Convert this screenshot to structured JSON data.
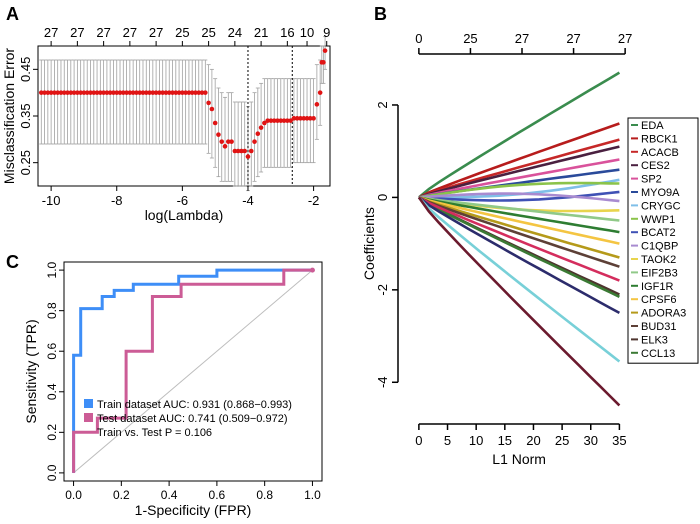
{
  "panel_labels": [
    "A",
    "B",
    "C"
  ],
  "chart_data": [
    {
      "panel": "A",
      "type": "scatter",
      "xlabel": "log(Lambda)",
      "ylabel": "Misclassification Error",
      "x_ticks": [
        -10,
        -8,
        -6,
        -4,
        -2
      ],
      "y_ticks": [
        0.25,
        0.35,
        0.45
      ],
      "xlim": [
        -10.4,
        -1.5
      ],
      "ylim": [
        0.2,
        0.5
      ],
      "top_axis_labels": [
        {
          "x": -10.0,
          "text": "27"
        },
        {
          "x": -9.2,
          "text": "27"
        },
        {
          "x": -8.4,
          "text": "27"
        },
        {
          "x": -7.6,
          "text": "27"
        },
        {
          "x": -6.8,
          "text": "27"
        },
        {
          "x": -6.0,
          "text": "25"
        },
        {
          "x": -5.2,
          "text": "25"
        },
        {
          "x": -4.4,
          "text": "24"
        },
        {
          "x": -3.6,
          "text": "21"
        },
        {
          "x": -2.8,
          "text": "16"
        },
        {
          "x": -2.2,
          "text": "10"
        },
        {
          "x": -1.6,
          "text": "9"
        }
      ],
      "vlines": [
        -4.0,
        -2.65
      ],
      "points": [
        [
          -10.3,
          0.4,
          0.29,
          0.47
        ],
        [
          -10.2,
          0.4,
          0.29,
          0.47
        ],
        [
          -10.1,
          0.4,
          0.29,
          0.47
        ],
        [
          -10.0,
          0.4,
          0.29,
          0.47
        ],
        [
          -9.9,
          0.4,
          0.29,
          0.47
        ],
        [
          -9.8,
          0.4,
          0.29,
          0.47
        ],
        [
          -9.7,
          0.4,
          0.29,
          0.47
        ],
        [
          -9.6,
          0.4,
          0.29,
          0.47
        ],
        [
          -9.5,
          0.4,
          0.29,
          0.47
        ],
        [
          -9.4,
          0.4,
          0.29,
          0.47
        ],
        [
          -9.3,
          0.4,
          0.29,
          0.47
        ],
        [
          -9.2,
          0.4,
          0.29,
          0.47
        ],
        [
          -9.1,
          0.4,
          0.29,
          0.47
        ],
        [
          -9.0,
          0.4,
          0.29,
          0.47
        ],
        [
          -8.9,
          0.4,
          0.29,
          0.47
        ],
        [
          -8.8,
          0.4,
          0.29,
          0.47
        ],
        [
          -8.7,
          0.4,
          0.29,
          0.47
        ],
        [
          -8.6,
          0.4,
          0.29,
          0.47
        ],
        [
          -8.5,
          0.4,
          0.29,
          0.47
        ],
        [
          -8.4,
          0.4,
          0.29,
          0.47
        ],
        [
          -8.3,
          0.4,
          0.29,
          0.47
        ],
        [
          -8.2,
          0.4,
          0.29,
          0.47
        ],
        [
          -8.1,
          0.4,
          0.29,
          0.47
        ],
        [
          -8.0,
          0.4,
          0.29,
          0.47
        ],
        [
          -7.9,
          0.4,
          0.29,
          0.47
        ],
        [
          -7.8,
          0.4,
          0.29,
          0.47
        ],
        [
          -7.7,
          0.4,
          0.29,
          0.47
        ],
        [
          -7.6,
          0.4,
          0.29,
          0.47
        ],
        [
          -7.5,
          0.4,
          0.29,
          0.47
        ],
        [
          -7.4,
          0.4,
          0.29,
          0.47
        ],
        [
          -7.3,
          0.4,
          0.29,
          0.47
        ],
        [
          -7.2,
          0.4,
          0.29,
          0.47
        ],
        [
          -7.1,
          0.4,
          0.29,
          0.47
        ],
        [
          -7.0,
          0.4,
          0.29,
          0.47
        ],
        [
          -6.9,
          0.4,
          0.29,
          0.47
        ],
        [
          -6.8,
          0.4,
          0.29,
          0.47
        ],
        [
          -6.7,
          0.4,
          0.29,
          0.47
        ],
        [
          -6.6,
          0.4,
          0.29,
          0.47
        ],
        [
          -6.5,
          0.4,
          0.29,
          0.47
        ],
        [
          -6.4,
          0.4,
          0.29,
          0.47
        ],
        [
          -6.3,
          0.4,
          0.29,
          0.47
        ],
        [
          -6.2,
          0.4,
          0.29,
          0.47
        ],
        [
          -6.1,
          0.4,
          0.29,
          0.47
        ],
        [
          -6.0,
          0.4,
          0.29,
          0.47
        ],
        [
          -5.9,
          0.4,
          0.29,
          0.47
        ],
        [
          -5.8,
          0.4,
          0.29,
          0.47
        ],
        [
          -5.7,
          0.4,
          0.29,
          0.47
        ],
        [
          -5.6,
          0.4,
          0.29,
          0.47
        ],
        [
          -5.5,
          0.4,
          0.29,
          0.47
        ],
        [
          -5.4,
          0.4,
          0.29,
          0.47
        ],
        [
          -5.3,
          0.4,
          0.29,
          0.47
        ],
        [
          -5.2,
          0.378,
          0.27,
          0.46
        ],
        [
          -5.1,
          0.365,
          0.26,
          0.45
        ],
        [
          -5.0,
          0.335,
          0.24,
          0.43
        ],
        [
          -4.9,
          0.31,
          0.22,
          0.41
        ],
        [
          -4.8,
          0.295,
          0.21,
          0.4
        ],
        [
          -4.7,
          0.285,
          0.21,
          0.39
        ],
        [
          -4.6,
          0.295,
          0.21,
          0.4
        ],
        [
          -4.5,
          0.295,
          0.21,
          0.4
        ],
        [
          -4.4,
          0.275,
          0.2,
          0.38
        ],
        [
          -4.3,
          0.275,
          0.2,
          0.38
        ],
        [
          -4.2,
          0.275,
          0.2,
          0.38
        ],
        [
          -4.1,
          0.275,
          0.2,
          0.38
        ],
        [
          -4.0,
          0.263,
          0.19,
          0.37
        ],
        [
          -3.9,
          0.275,
          0.2,
          0.38
        ],
        [
          -3.8,
          0.295,
          0.21,
          0.4
        ],
        [
          -3.7,
          0.312,
          0.22,
          0.41
        ],
        [
          -3.6,
          0.325,
          0.23,
          0.42
        ],
        [
          -3.5,
          0.335,
          0.24,
          0.43
        ],
        [
          -3.4,
          0.34,
          0.24,
          0.43
        ],
        [
          -3.3,
          0.34,
          0.24,
          0.43
        ],
        [
          -3.2,
          0.34,
          0.24,
          0.43
        ],
        [
          -3.1,
          0.34,
          0.24,
          0.43
        ],
        [
          -3.0,
          0.34,
          0.24,
          0.43
        ],
        [
          -2.9,
          0.34,
          0.24,
          0.43
        ],
        [
          -2.8,
          0.34,
          0.24,
          0.43
        ],
        [
          -2.7,
          0.34,
          0.24,
          0.43
        ],
        [
          -2.6,
          0.345,
          0.25,
          0.43
        ],
        [
          -2.5,
          0.345,
          0.25,
          0.43
        ],
        [
          -2.4,
          0.345,
          0.25,
          0.43
        ],
        [
          -2.3,
          0.345,
          0.25,
          0.43
        ],
        [
          -2.2,
          0.345,
          0.25,
          0.43
        ],
        [
          -2.1,
          0.345,
          0.25,
          0.43
        ],
        [
          -2.0,
          0.345,
          0.25,
          0.43
        ],
        [
          -1.9,
          0.375,
          0.3,
          0.46
        ],
        [
          -1.8,
          0.4,
          0.33,
          0.47
        ],
        [
          -1.75,
          0.465,
          0.42,
          0.5
        ],
        [
          -1.7,
          0.465,
          0.42,
          0.5
        ],
        [
          -1.65,
          0.49,
          0.45,
          0.52
        ]
      ]
    },
    {
      "panel": "B",
      "type": "line",
      "xlabel": "L1 Norm",
      "ylabel": "Coefficients",
      "x_ticks": [
        0,
        5,
        10,
        15,
        20,
        25,
        30,
        35
      ],
      "y_ticks": [
        -4,
        -2,
        0,
        2
      ],
      "xlim": [
        -1.2,
        36.5
      ],
      "ylim": [
        -4.6,
        2.8
      ],
      "top_axis": [
        {
          "x": 0,
          "text": "0"
        },
        {
          "x": 9,
          "text": "25"
        },
        {
          "x": 18,
          "text": "27"
        },
        {
          "x": 27,
          "text": "27"
        },
        {
          "x": 36,
          "text": "27"
        }
      ],
      "series": [
        {
          "name": "EDA",
          "color": "#3a8c4e",
          "end": 2.7
        },
        {
          "name": "RBCK1",
          "color": "#b71c1c",
          "end": 1.6
        },
        {
          "name": "ACACB",
          "color": "#c62828",
          "end": 1.25
        },
        {
          "name": "CES2",
          "color": "#4a2040",
          "end": 1.1
        },
        {
          "name": "SP2",
          "color": "#d9529b",
          "end": 0.82
        },
        {
          "name": "MYO9A",
          "color": "#2a4a9a",
          "end": 0.6
        },
        {
          "name": "CRYGC",
          "color": "#7fbfe8",
          "end": 0.38
        },
        {
          "name": "WWP1",
          "color": "#8bc34a",
          "end": 0.3
        },
        {
          "name": "BCAT2",
          "color": "#3f51b5",
          "end": 0.12
        },
        {
          "name": "C1QBP",
          "color": "#a88bd0",
          "end": -0.08
        },
        {
          "name": "TAOK2",
          "color": "#e8d44d",
          "end": -0.28
        },
        {
          "name": "EIF2B3",
          "color": "#90c988",
          "end": -0.5
        },
        {
          "name": "IGF1R",
          "color": "#2e7d32",
          "end": -0.75
        },
        {
          "name": "CPSF6",
          "color": "#f4c542",
          "end": -1.0
        },
        {
          "name": "ADORA3",
          "color": "#b59a1a",
          "end": -1.3
        },
        {
          "name": "BUD31",
          "color": "#5d4037",
          "end": -1.5
        },
        {
          "name": "ELK3",
          "color": "#4e342e",
          "end": -2.1
        },
        {
          "name": "CCL13",
          "color": "#3b7a34",
          "end": -2.15
        },
        {
          "name": "",
          "color": "#d42d5d",
          "end": -1.8
        },
        {
          "name": "",
          "color": "#2c2c6c",
          "end": -2.5
        },
        {
          "name": "",
          "color": "#78d0d8",
          "end": -3.55
        },
        {
          "name": "",
          "color": "#6b1a2e",
          "end": -4.5
        }
      ]
    },
    {
      "panel": "C",
      "type": "line",
      "xlabel": "1-Specificity (FPR)",
      "ylabel": "Sensitivity (TPR)",
      "x_ticks": [
        "0.0",
        "0.2",
        "0.4",
        "0.6",
        "0.8",
        "1.0"
      ],
      "y_ticks": [
        "0.0",
        "0.2",
        "0.4",
        "0.6",
        "0.8",
        "1.0"
      ],
      "xlim": [
        -0.04,
        1.04
      ],
      "ylim": [
        -0.04,
        1.04
      ],
      "series": [
        {
          "name": "Train dataset AUC: 0.931 (0.868−0.993)",
          "color": "#3e8ef7",
          "points": [
            [
              0,
              0
            ],
            [
              0,
              0.2
            ],
            [
              0,
              0.58
            ],
            [
              0.03,
              0.58
            ],
            [
              0.03,
              0.81
            ],
            [
              0.12,
              0.81
            ],
            [
              0.12,
              0.87
            ],
            [
              0.17,
              0.87
            ],
            [
              0.17,
              0.9
            ],
            [
              0.25,
              0.9
            ],
            [
              0.25,
              0.93
            ],
            [
              0.44,
              0.93
            ],
            [
              0.44,
              0.97
            ],
            [
              0.6,
              0.97
            ],
            [
              0.6,
              1.0
            ],
            [
              1.0,
              1.0
            ]
          ]
        },
        {
          "name": "Test dataset AUC: 0.741 (0.509−0.972)",
          "color": "#cc5c96",
          "points": [
            [
              0,
              0
            ],
            [
              0,
              0.2
            ],
            [
              0.1,
              0.2
            ],
            [
              0.1,
              0.27
            ],
            [
              0.22,
              0.27
            ],
            [
              0.22,
              0.6
            ],
            [
              0.33,
              0.6
            ],
            [
              0.33,
              0.87
            ],
            [
              0.45,
              0.87
            ],
            [
              0.45,
              0.93
            ],
            [
              0.88,
              0.93
            ],
            [
              0.88,
              1.0
            ],
            [
              1.0,
              1.0
            ]
          ]
        }
      ],
      "annotation": "Train vs. Test P = 0.106"
    }
  ]
}
